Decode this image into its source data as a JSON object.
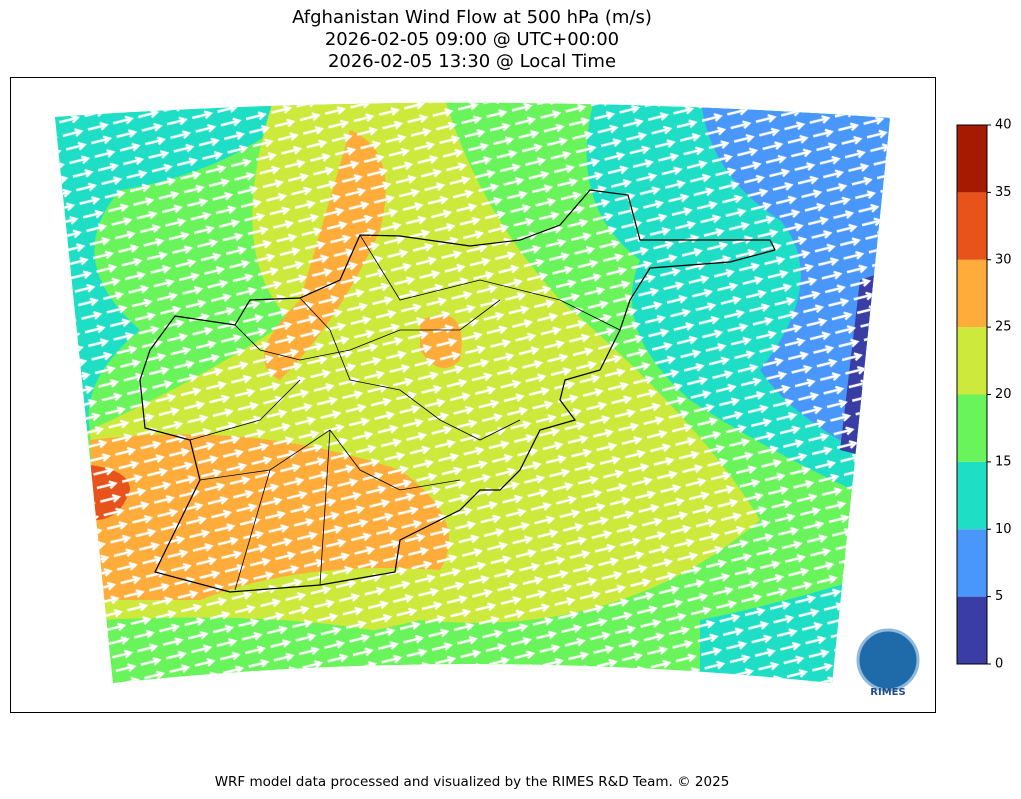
{
  "title": [
    "Afghanistan Wind Flow at 500 hPa (m/s)",
    "2026-02-05 09:00 @ UTC+00:00",
    "2026-02-05 13:30 @ Local Time"
  ],
  "colorbar": {
    "ticks": [
      0,
      5,
      10,
      15,
      20,
      25,
      30,
      35,
      40
    ],
    "colors": [
      "#3a3ea4",
      "#4a97fb",
      "#1fdec6",
      "#69f45c",
      "#cde93b",
      "#ffac3b",
      "#e8531b",
      "#a51a00"
    ]
  },
  "logo": "RIMES",
  "footer": "WRF model data processed and visualized by the RIMES R&D Team. © 2025"
}
